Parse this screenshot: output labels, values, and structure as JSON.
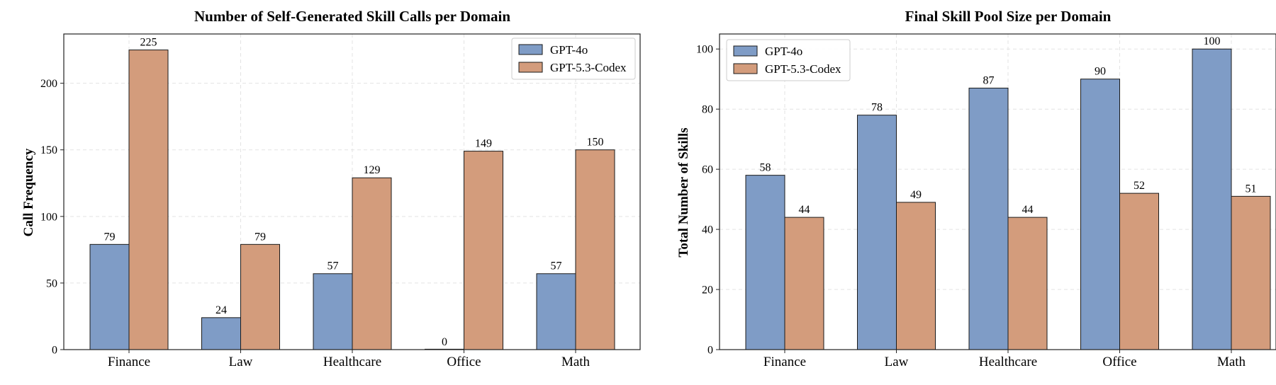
{
  "colors": {
    "gpt4o": "#7f9cc6",
    "codex": "#d39c7c"
  },
  "chart_data": [
    {
      "type": "bar",
      "title": "Number of Self-Generated Skill Calls per Domain",
      "xlabel": "",
      "ylabel": "Call Frequency",
      "categories": [
        "Finance",
        "Law",
        "Healthcare",
        "Office",
        "Math"
      ],
      "series": [
        {
          "name": "GPT-4o",
          "values": [
            79,
            24,
            57,
            0,
            57
          ]
        },
        {
          "name": "GPT-5.3-Codex",
          "values": [
            225,
            79,
            129,
            149,
            150
          ]
        }
      ],
      "ylim": [
        0,
        237
      ],
      "yticks": [
        0,
        50,
        100,
        150,
        200
      ],
      "grid": true,
      "legend": "top-right"
    },
    {
      "type": "bar",
      "title": "Final Skill Pool Size per Domain",
      "xlabel": "",
      "ylabel": "Total Number of Skills",
      "categories": [
        "Finance",
        "Law",
        "Healthcare",
        "Office",
        "Math"
      ],
      "series": [
        {
          "name": "GPT-4o",
          "values": [
            58,
            78,
            87,
            90,
            100
          ]
        },
        {
          "name": "GPT-5.3-Codex",
          "values": [
            44,
            49,
            44,
            52,
            51
          ]
        }
      ],
      "ylim": [
        0,
        105
      ],
      "yticks": [
        0,
        20,
        40,
        60,
        80,
        100
      ],
      "grid": true,
      "legend": "top-left"
    }
  ]
}
